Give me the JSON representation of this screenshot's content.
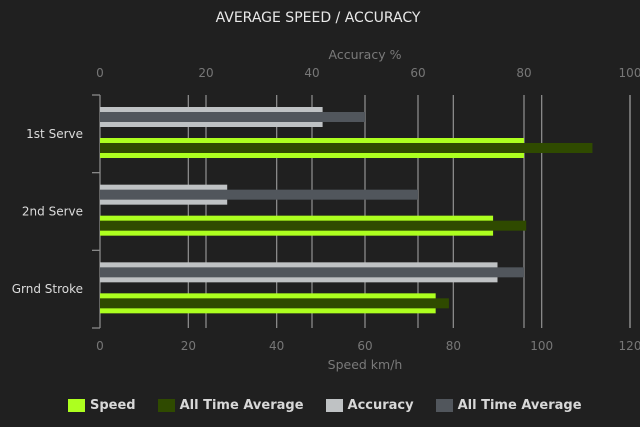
{
  "chart_data": {
    "type": "bar",
    "orientation": "horizontal",
    "title": "AVERAGE SPEED / ACCURACY",
    "categories": [
      "1st Serve",
      "2nd Serve",
      "Grnd Stroke"
    ],
    "top_axis": {
      "label": "Accuracy %",
      "range": [
        0,
        100
      ],
      "ticks": [
        "0",
        "20",
        "40",
        "60",
        "80",
        "100"
      ]
    },
    "bottom_axis": {
      "label": "Speed km/h",
      "range": [
        0,
        120
      ],
      "ticks": [
        "0",
        "20",
        "40",
        "60",
        "80",
        "100",
        "120"
      ]
    },
    "grid": true,
    "legend_position": "bottom",
    "series": [
      {
        "name": "Speed",
        "axis": "bottom",
        "color": "#adff1f",
        "values": [
          96,
          89,
          76
        ]
      },
      {
        "name": "All Time Average",
        "axis": "bottom",
        "color": "#2f4a00",
        "values": [
          111.5,
          96.5,
          79
        ]
      },
      {
        "name": "Accuracy",
        "axis": "top",
        "color": "#bfc2c4",
        "values": [
          42,
          24,
          75
        ]
      },
      {
        "name": "All Time Average",
        "axis": "top",
        "color": "#51565c",
        "values": [
          50,
          60,
          80
        ]
      }
    ]
  }
}
